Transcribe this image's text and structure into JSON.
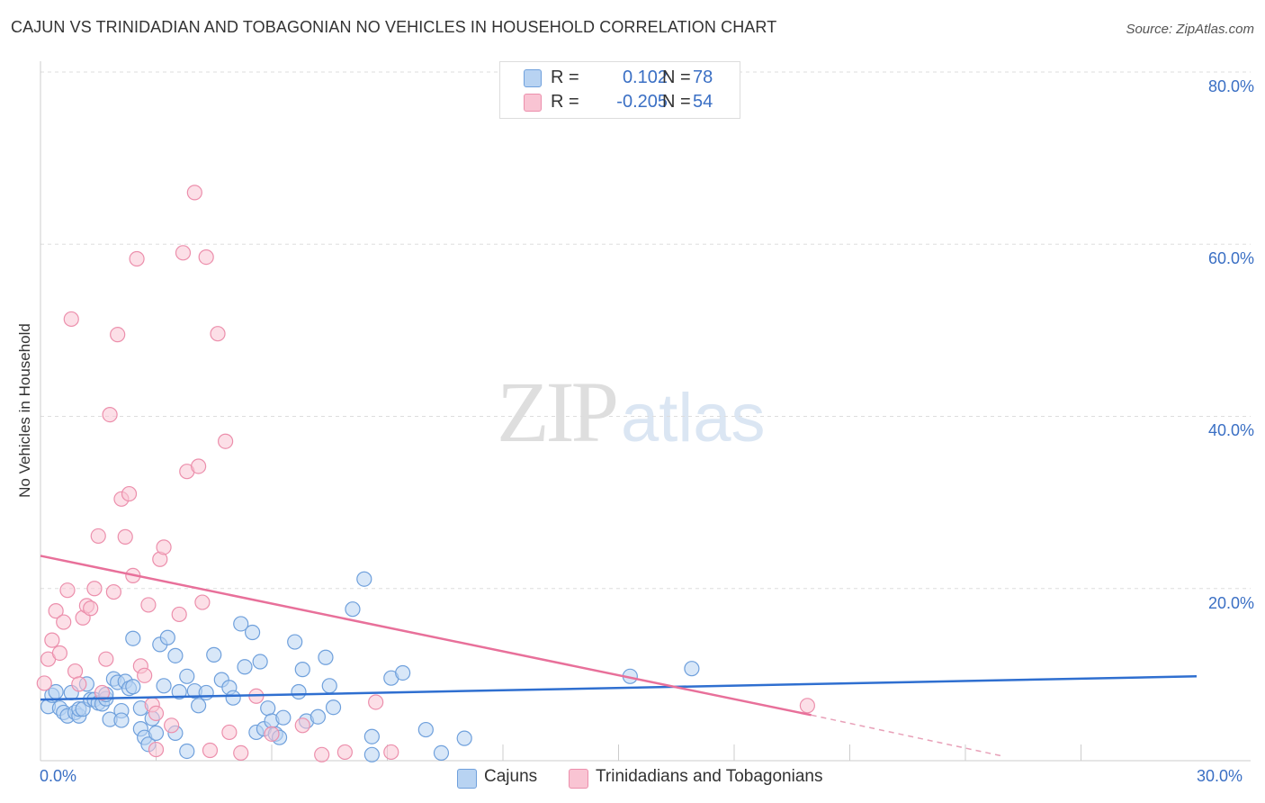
{
  "title": "CAJUN VS TRINIDADIAN AND TOBAGONIAN NO VEHICLES IN HOUSEHOLD CORRELATION CHART",
  "source": "Source: ZipAtlas.com",
  "watermark": {
    "left": "ZIP",
    "right": "atlas"
  },
  "legend": {
    "rows": [
      {
        "r_label": "R =",
        "r_value": "0.102",
        "n_label": "N =",
        "n_value": "78",
        "color": "#a8c8f0"
      },
      {
        "r_label": "R =",
        "r_value": "-0.205",
        "n_label": "N =",
        "n_value": "54",
        "color": "#f7b8cc"
      }
    ]
  },
  "bottom_legend": [
    {
      "label": "Cajuns",
      "color": "#a8c8f0"
    },
    {
      "label": "Trinidadians and Tobagonians",
      "color": "#f7b8cc"
    }
  ],
  "axes": {
    "ylabel": "No Vehicles in Household",
    "yticks": [
      "80.0%",
      "60.0%",
      "40.0%",
      "20.0%"
    ],
    "xticks": [
      "0.0%",
      "30.0%"
    ]
  },
  "chart_data": {
    "type": "scatter",
    "title": "CAJUN VS TRINIDADIAN AND TOBAGONIAN NO VEHICLES IN HOUSEHOLD CORRELATION CHART",
    "xlabel": "",
    "ylabel": "No Vehicles in Household",
    "xlim": [
      0,
      30
    ],
    "ylim": [
      0,
      80
    ],
    "grid": true,
    "legend_position": "top-center",
    "series": [
      {
        "name": "Cajuns",
        "color": "#6fa0dc",
        "fill": "#b8d3f2",
        "trend": {
          "x": [
            0,
            30
          ],
          "y": [
            7.1,
            9.8
          ]
        },
        "points": [
          [
            0.2,
            6.3
          ],
          [
            0.3,
            7.6
          ],
          [
            0.4,
            8.0
          ],
          [
            0.5,
            6.1
          ],
          [
            0.6,
            5.6
          ],
          [
            0.7,
            5.2
          ],
          [
            0.8,
            7.9
          ],
          [
            0.9,
            5.6
          ],
          [
            1.0,
            5.2
          ],
          [
            1.0,
            6.0
          ],
          [
            1.1,
            6.0
          ],
          [
            1.2,
            8.9
          ],
          [
            1.3,
            7.1
          ],
          [
            1.4,
            7.1
          ],
          [
            1.5,
            6.7
          ],
          [
            1.6,
            6.6
          ],
          [
            1.7,
            7.2
          ],
          [
            1.7,
            7.7
          ],
          [
            1.8,
            4.8
          ],
          [
            1.9,
            9.5
          ],
          [
            2.0,
            9.1
          ],
          [
            2.1,
            5.8
          ],
          [
            2.2,
            9.2
          ],
          [
            2.3,
            8.4
          ],
          [
            2.4,
            8.6
          ],
          [
            2.4,
            14.2
          ],
          [
            2.6,
            6.1
          ],
          [
            2.6,
            3.7
          ],
          [
            2.7,
            2.7
          ],
          [
            2.8,
            1.9
          ],
          [
            2.9,
            4.9
          ],
          [
            3.0,
            3.2
          ],
          [
            3.1,
            13.5
          ],
          [
            3.2,
            8.7
          ],
          [
            3.3,
            14.3
          ],
          [
            3.5,
            12.2
          ],
          [
            3.6,
            8.0
          ],
          [
            3.8,
            1.1
          ],
          [
            3.8,
            9.8
          ],
          [
            4.0,
            8.1
          ],
          [
            4.1,
            6.4
          ],
          [
            4.3,
            7.9
          ],
          [
            4.5,
            12.3
          ],
          [
            4.7,
            9.4
          ],
          [
            4.9,
            8.5
          ],
          [
            5.0,
            7.3
          ],
          [
            5.2,
            15.9
          ],
          [
            5.3,
            10.9
          ],
          [
            5.5,
            14.9
          ],
          [
            5.6,
            3.3
          ],
          [
            5.7,
            11.5
          ],
          [
            5.8,
            3.7
          ],
          [
            5.9,
            6.1
          ],
          [
            6.0,
            4.6
          ],
          [
            6.1,
            3.1
          ],
          [
            6.2,
            2.7
          ],
          [
            6.3,
            5.0
          ],
          [
            6.6,
            13.8
          ],
          [
            6.7,
            8.0
          ],
          [
            6.8,
            10.6
          ],
          [
            6.9,
            4.6
          ],
          [
            7.2,
            5.1
          ],
          [
            7.4,
            12.0
          ],
          [
            7.5,
            8.7
          ],
          [
            7.6,
            6.2
          ],
          [
            8.1,
            17.6
          ],
          [
            8.4,
            21.1
          ],
          [
            8.6,
            0.7
          ],
          [
            8.6,
            2.8
          ],
          [
            9.1,
            9.6
          ],
          [
            9.4,
            10.2
          ],
          [
            10.0,
            3.6
          ],
          [
            10.4,
            0.9
          ],
          [
            11.0,
            2.6
          ],
          [
            15.3,
            9.8
          ],
          [
            16.9,
            10.7
          ],
          [
            2.1,
            4.7
          ],
          [
            3.5,
            3.2
          ]
        ]
      },
      {
        "name": "Trinidadians and Tobagonians",
        "color": "#ec8fac",
        "fill": "#f9c4d3",
        "trend": {
          "x": [
            0,
            20
          ],
          "y": [
            23.8,
            5.3
          ]
        },
        "trend_dashed": {
          "x": [
            20,
            25
          ],
          "y": [
            5.3,
            0.5
          ]
        },
        "points": [
          [
            0.1,
            9.0
          ],
          [
            0.2,
            11.8
          ],
          [
            0.3,
            14.0
          ],
          [
            0.4,
            17.4
          ],
          [
            0.5,
            12.5
          ],
          [
            0.6,
            16.1
          ],
          [
            0.7,
            19.8
          ],
          [
            0.8,
            51.3
          ],
          [
            0.9,
            10.4
          ],
          [
            1.0,
            8.9
          ],
          [
            1.1,
            16.6
          ],
          [
            1.2,
            18.0
          ],
          [
            1.3,
            17.7
          ],
          [
            1.4,
            20.0
          ],
          [
            1.5,
            26.1
          ],
          [
            1.6,
            7.9
          ],
          [
            1.7,
            11.8
          ],
          [
            1.8,
            40.2
          ],
          [
            1.9,
            19.6
          ],
          [
            2.0,
            49.5
          ],
          [
            2.1,
            30.4
          ],
          [
            2.2,
            26.0
          ],
          [
            2.3,
            31.0
          ],
          [
            2.4,
            21.5
          ],
          [
            2.5,
            58.3
          ],
          [
            2.6,
            11.0
          ],
          [
            2.7,
            9.9
          ],
          [
            2.8,
            18.1
          ],
          [
            2.9,
            6.5
          ],
          [
            3.0,
            5.5
          ],
          [
            3.1,
            23.4
          ],
          [
            3.2,
            24.8
          ],
          [
            3.4,
            4.1
          ],
          [
            3.6,
            17.0
          ],
          [
            3.7,
            59.0
          ],
          [
            3.8,
            33.6
          ],
          [
            4.0,
            66.0
          ],
          [
            4.1,
            34.2
          ],
          [
            4.2,
            18.4
          ],
          [
            4.3,
            58.5
          ],
          [
            4.4,
            1.2
          ],
          [
            4.6,
            49.6
          ],
          [
            4.8,
            37.1
          ],
          [
            4.9,
            3.3
          ],
          [
            5.2,
            0.9
          ],
          [
            5.6,
            7.5
          ],
          [
            6.0,
            3.1
          ],
          [
            6.8,
            4.1
          ],
          [
            7.3,
            0.7
          ],
          [
            7.9,
            1.0
          ],
          [
            8.7,
            6.8
          ],
          [
            9.1,
            1.0
          ],
          [
            19.9,
            6.4
          ],
          [
            3.0,
            1.3
          ]
        ]
      }
    ]
  }
}
